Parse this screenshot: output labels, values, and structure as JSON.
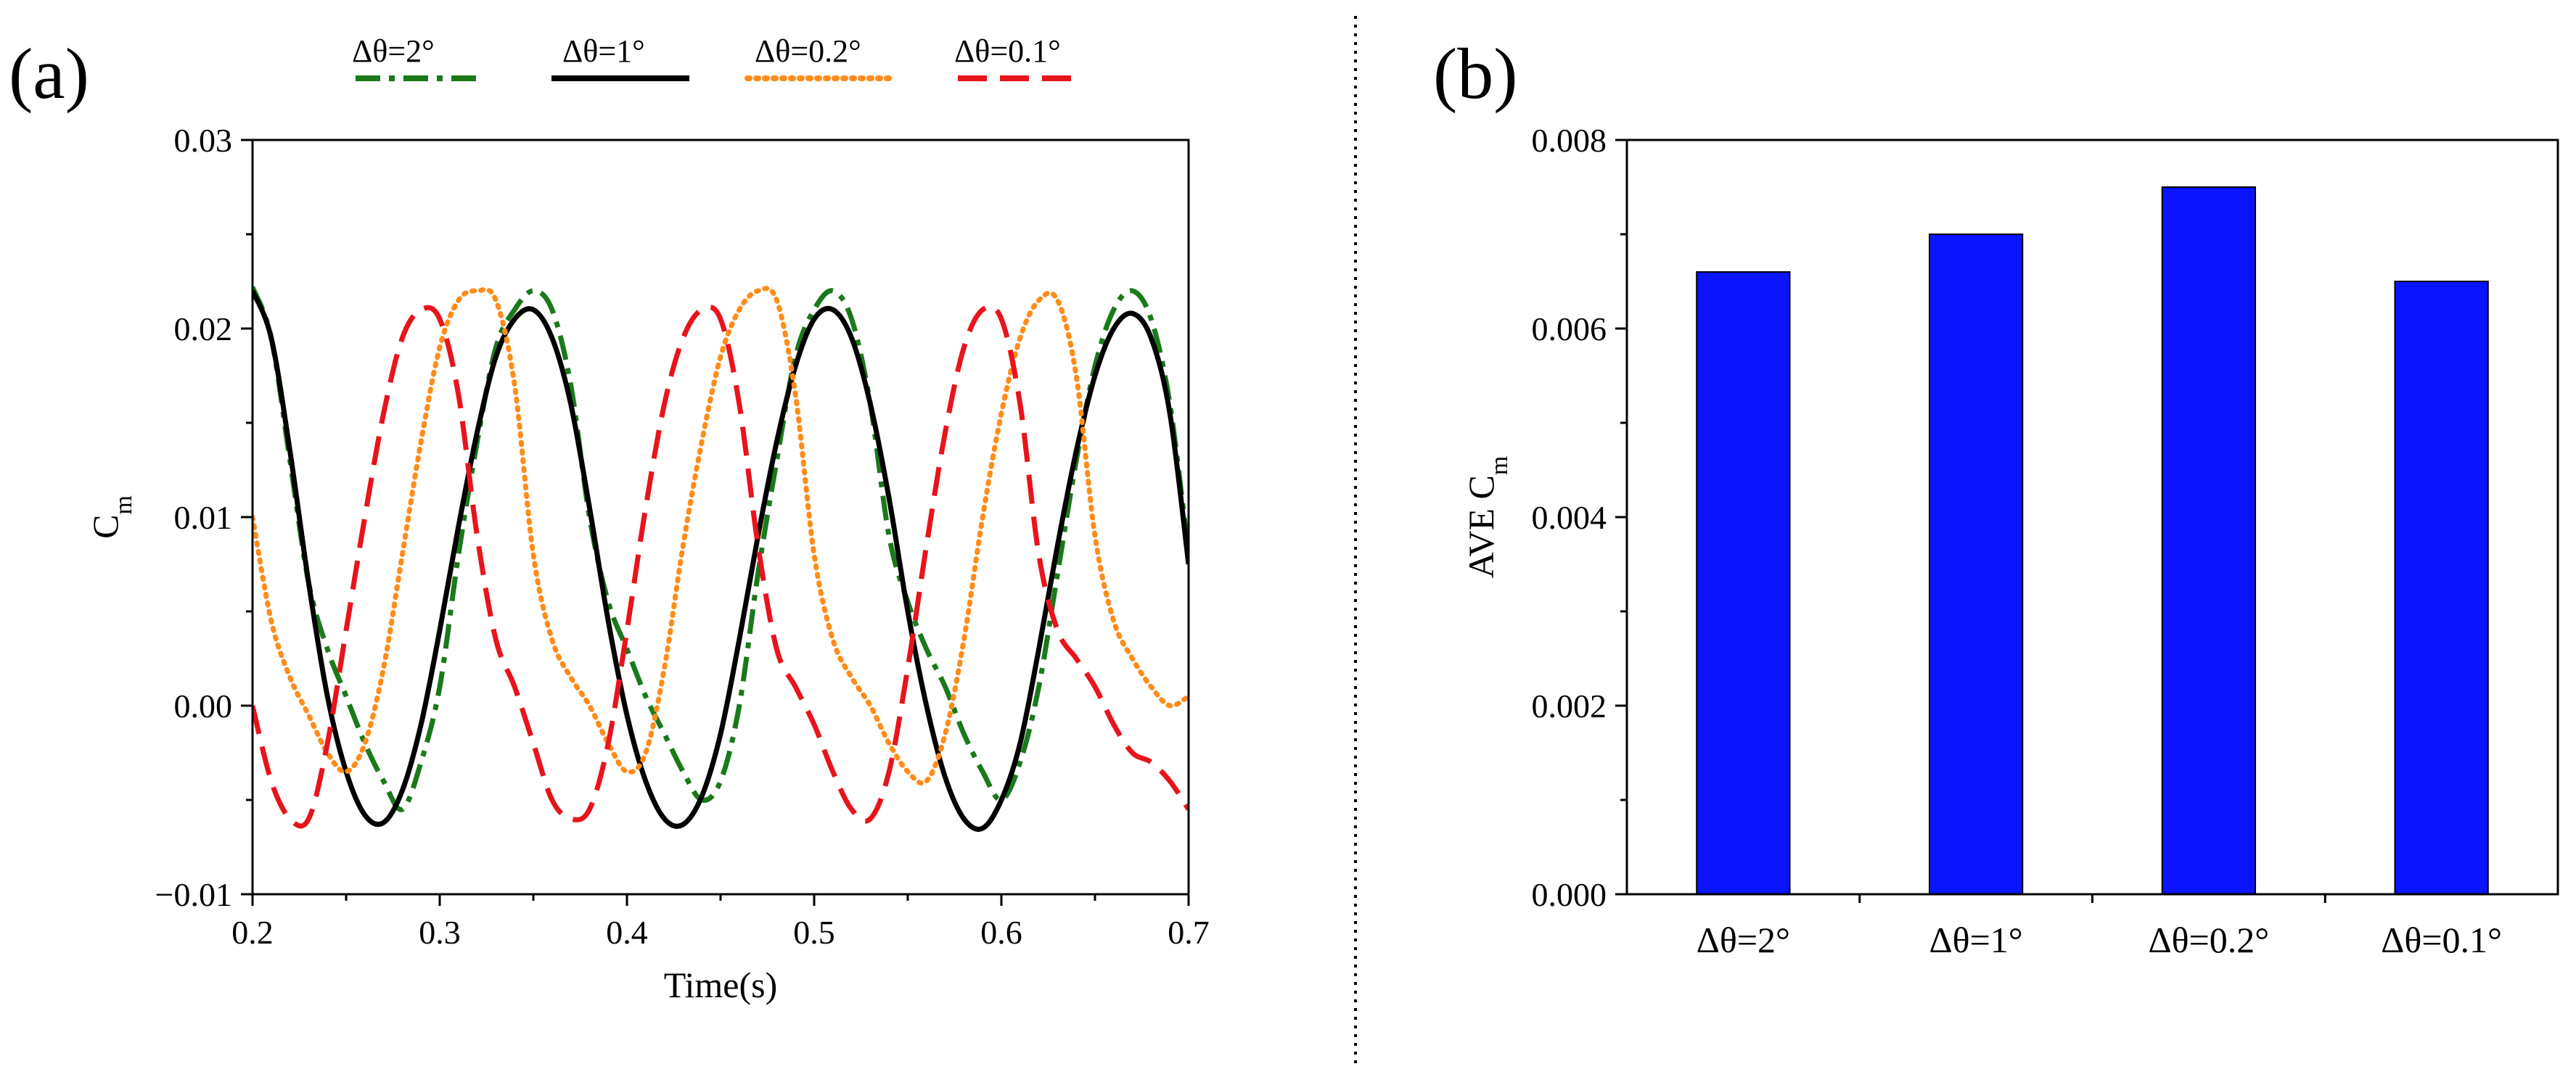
{
  "chart_data": [
    {
      "type": "line",
      "panel_label": "(a)",
      "xlabel": "Time(s)",
      "ylabel": {
        "base": "C",
        "sub": "m"
      },
      "xlim": [
        0.2,
        0.7
      ],
      "ylim": [
        -0.01,
        0.03
      ],
      "xticks": [
        0.2,
        0.3,
        0.4,
        0.5,
        0.6,
        0.7
      ],
      "xtick_labels": [
        "0.2",
        "0.3",
        "0.4",
        "0.5",
        "0.6",
        "0.7"
      ],
      "yticks": [
        -0.01,
        0.0,
        0.01,
        0.02,
        0.03
      ],
      "ytick_labels": [
        "−0.01",
        "0.00",
        "0.01",
        "0.02",
        "0.03"
      ],
      "legend_position": "top",
      "series": [
        {
          "name": "2°",
          "legend_label": "Δθ=2°",
          "color": "#1a7a1a",
          "style": "dashdot",
          "x": [
            0.2,
            0.21,
            0.22,
            0.23,
            0.24,
            0.25,
            0.26,
            0.27,
            0.28,
            0.29,
            0.3,
            0.31,
            0.32,
            0.33,
            0.34,
            0.35,
            0.36,
            0.37,
            0.38,
            0.39,
            0.4,
            0.41,
            0.42,
            0.43,
            0.44,
            0.45,
            0.46,
            0.47,
            0.48,
            0.49,
            0.5,
            0.51,
            0.52,
            0.53,
            0.54,
            0.55,
            0.56,
            0.57,
            0.58,
            0.59,
            0.6,
            0.61,
            0.62,
            0.63,
            0.64,
            0.65,
            0.66,
            0.67,
            0.68,
            0.69,
            0.7
          ],
          "y": [
            0.0222,
            0.0195,
            0.013,
            0.0065,
            0.003,
            0.0005,
            -0.002,
            -0.004,
            -0.0055,
            -0.003,
            0.001,
            0.008,
            0.014,
            0.019,
            0.021,
            0.022,
            0.021,
            0.017,
            0.01,
            0.0055,
            0.003,
            0.0005,
            -0.0015,
            -0.0035,
            -0.005,
            -0.004,
            0.0,
            0.007,
            0.013,
            0.0185,
            0.021,
            0.022,
            0.0205,
            0.016,
            0.009,
            0.0055,
            0.003,
            0.001,
            -0.0015,
            -0.0035,
            -0.005,
            -0.003,
            0.001,
            0.007,
            0.013,
            0.018,
            0.021,
            0.022,
            0.0205,
            0.016,
            0.008
          ]
        },
        {
          "name": "1°",
          "legend_label": "Δθ=1°",
          "color": "#000000",
          "style": "solid",
          "x": [
            0.2,
            0.21,
            0.22,
            0.23,
            0.24,
            0.25,
            0.26,
            0.27,
            0.28,
            0.29,
            0.3,
            0.31,
            0.32,
            0.33,
            0.34,
            0.35,
            0.36,
            0.37,
            0.38,
            0.39,
            0.4,
            0.41,
            0.42,
            0.43,
            0.44,
            0.45,
            0.46,
            0.47,
            0.48,
            0.49,
            0.5,
            0.51,
            0.52,
            0.53,
            0.54,
            0.55,
            0.56,
            0.57,
            0.58,
            0.59,
            0.6,
            0.61,
            0.62,
            0.63,
            0.64,
            0.65,
            0.66,
            0.67,
            0.68,
            0.69,
            0.7
          ],
          "y": [
            0.022,
            0.0195,
            0.0135,
            0.0065,
            0.0005,
            -0.0035,
            -0.0058,
            -0.0062,
            -0.0045,
            -0.001,
            0.004,
            0.0095,
            0.0145,
            0.0185,
            0.0205,
            0.021,
            0.0195,
            0.016,
            0.0105,
            0.0045,
            -0.0005,
            -0.004,
            -0.006,
            -0.0063,
            -0.0048,
            -0.0015,
            0.0035,
            0.009,
            0.014,
            0.018,
            0.0205,
            0.021,
            0.0195,
            0.016,
            0.011,
            0.005,
            0.0,
            -0.0038,
            -0.006,
            -0.0065,
            -0.005,
            -0.002,
            0.003,
            0.0085,
            0.0135,
            0.0175,
            0.02,
            0.0208,
            0.0195,
            0.0155,
            0.0075
          ]
        },
        {
          "name": "0.2°",
          "legend_label": "Δθ=0.2°",
          "color": "#ff8c1a",
          "style": "dotted",
          "x": [
            0.2,
            0.21,
            0.22,
            0.23,
            0.24,
            0.25,
            0.26,
            0.27,
            0.28,
            0.29,
            0.3,
            0.31,
            0.32,
            0.33,
            0.34,
            0.35,
            0.36,
            0.37,
            0.38,
            0.39,
            0.4,
            0.41,
            0.42,
            0.43,
            0.44,
            0.45,
            0.46,
            0.47,
            0.48,
            0.49,
            0.5,
            0.51,
            0.52,
            0.53,
            0.54,
            0.55,
            0.56,
            0.57,
            0.58,
            0.59,
            0.6,
            0.61,
            0.62,
            0.63,
            0.64,
            0.65,
            0.66,
            0.67,
            0.68,
            0.69,
            0.7
          ],
          "y": [
            0.01,
            0.0045,
            0.0015,
            -0.0005,
            -0.0025,
            -0.0035,
            -0.002,
            0.002,
            0.008,
            0.014,
            0.019,
            0.0215,
            0.022,
            0.0215,
            0.017,
            0.008,
            0.0035,
            0.0015,
            0.0,
            -0.002,
            -0.0035,
            -0.0025,
            0.002,
            0.0085,
            0.014,
            0.0185,
            0.021,
            0.022,
            0.0215,
            0.0165,
            0.008,
            0.0035,
            0.0015,
            0.0,
            -0.002,
            -0.0035,
            -0.004,
            -0.0015,
            0.0035,
            0.01,
            0.0155,
            0.0195,
            0.0215,
            0.0215,
            0.0175,
            0.009,
            0.0045,
            0.0025,
            0.001,
            0.0,
            0.0005
          ]
        },
        {
          "name": "0.1°",
          "legend_label": "Δθ=0.1°",
          "color": "#e8141c",
          "style": "dashed",
          "x": [
            0.2,
            0.21,
            0.22,
            0.23,
            0.24,
            0.25,
            0.26,
            0.27,
            0.28,
            0.29,
            0.3,
            0.31,
            0.32,
            0.33,
            0.34,
            0.35,
            0.36,
            0.37,
            0.38,
            0.39,
            0.4,
            0.41,
            0.42,
            0.43,
            0.44,
            0.45,
            0.46,
            0.47,
            0.48,
            0.49,
            0.5,
            0.51,
            0.52,
            0.53,
            0.54,
            0.55,
            0.56,
            0.57,
            0.58,
            0.59,
            0.6,
            0.61,
            0.62,
            0.63,
            0.64,
            0.65,
            0.66,
            0.67,
            0.68,
            0.69,
            0.7
          ],
          "y": [
            0.0,
            -0.004,
            -0.006,
            -0.006,
            -0.002,
            0.004,
            0.01,
            0.0155,
            0.0195,
            0.021,
            0.0205,
            0.0165,
            0.009,
            0.0035,
            0.001,
            -0.002,
            -0.005,
            -0.006,
            -0.0055,
            -0.002,
            0.004,
            0.0105,
            0.016,
            0.0195,
            0.021,
            0.0205,
            0.016,
            0.0085,
            0.003,
            0.001,
            -0.001,
            -0.0035,
            -0.0055,
            -0.006,
            -0.0035,
            0.002,
            0.0085,
            0.0145,
            0.019,
            0.021,
            0.0205,
            0.016,
            0.008,
            0.004,
            0.0025,
            0.001,
            -0.001,
            -0.0025,
            -0.003,
            -0.004,
            -0.0055
          ]
        }
      ]
    },
    {
      "type": "bar",
      "panel_label": "(b)",
      "xlabel": "",
      "ylabel": {
        "base": "AVE C",
        "sub": "m"
      },
      "categories": [
        "Δθ=2°",
        "Δθ=1°",
        "Δθ=0.2°",
        "Δθ=0.1°"
      ],
      "values": [
        0.0066,
        0.007,
        0.0075,
        0.0065
      ],
      "ylim": [
        0.0,
        0.008
      ],
      "yticks": [
        0.0,
        0.002,
        0.004,
        0.006,
        0.008
      ],
      "ytick_labels": [
        "0.000",
        "0.002",
        "0.004",
        "0.006",
        "0.008"
      ],
      "bar_color": "#0a14ff",
      "grid": false
    }
  ]
}
